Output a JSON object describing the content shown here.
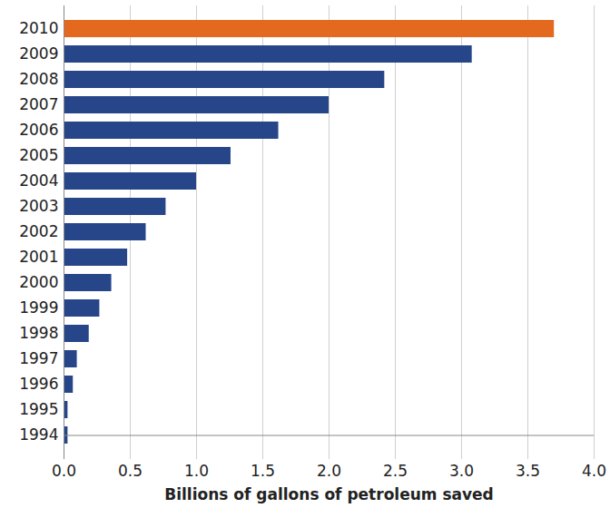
{
  "chart_data": {
    "type": "bar",
    "orientation": "horizontal",
    "categories": [
      "2010",
      "2009",
      "2008",
      "2007",
      "2006",
      "2005",
      "2004",
      "2003",
      "2002",
      "2001",
      "2000",
      "1999",
      "1998",
      "1997",
      "1996",
      "1995",
      "1994"
    ],
    "values": [
      3.7,
      3.08,
      2.42,
      2.0,
      1.62,
      1.26,
      1.0,
      0.77,
      0.62,
      0.48,
      0.36,
      0.27,
      0.19,
      0.1,
      0.07,
      0.03,
      0.03
    ],
    "colors": [
      "#e2691d",
      "#27468a",
      "#27468a",
      "#27468a",
      "#27468a",
      "#27468a",
      "#27468a",
      "#27468a",
      "#27468a",
      "#27468a",
      "#27468a",
      "#27468a",
      "#27468a",
      "#27468a",
      "#27468a",
      "#27468a",
      "#27468a"
    ],
    "x_label": "Billions of gallons of petroleum saved",
    "xlim": [
      0,
      4
    ],
    "xticks": [
      0,
      0.5,
      1,
      1.5,
      2,
      2.5,
      3,
      3.5,
      4
    ],
    "grid": true
  }
}
